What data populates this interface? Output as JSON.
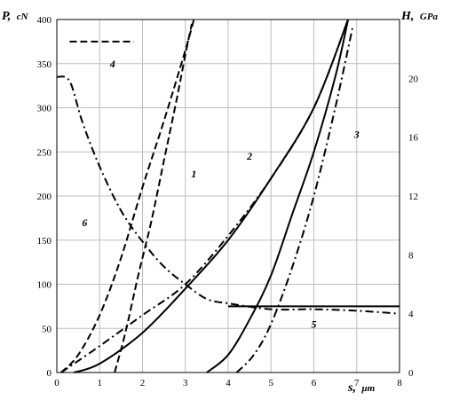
{
  "chart_data": {
    "type": "line",
    "y_left_label": "P,",
    "y_left_unit": "cN",
    "y_right_label": "H,",
    "y_right_unit": "GPa",
    "x_label": "s,",
    "x_unit": "μm",
    "x_ticks": [
      "0",
      "1",
      "2",
      "3",
      "4",
      "5",
      "6",
      "7",
      "8"
    ],
    "y_left_ticks": [
      "0",
      "50",
      "100",
      "150",
      "200",
      "250",
      "300",
      "350",
      "400"
    ],
    "y_right_ticks": [
      "0",
      "4",
      "8",
      "12",
      "16",
      "20"
    ],
    "xlim": [
      0,
      8
    ],
    "ylim_left": [
      0,
      400
    ],
    "ylim_right": [
      0,
      24
    ],
    "grid": true,
    "series": [
      {
        "name": "1",
        "axis": "left",
        "style": "dashed",
        "x": [
          1.35,
          1.6,
          1.9,
          2.2,
          2.5,
          2.8,
          3.0,
          3.15
        ],
        "y": [
          0,
          45,
          110,
          170,
          240,
          310,
          360,
          395
        ]
      },
      {
        "name": "1",
        "axis": "left",
        "style": "dashed",
        "x": [
          0.1,
          0.5,
          1.0,
          1.5,
          2.0,
          2.5,
          3.0,
          3.2
        ],
        "y": [
          0,
          20,
          65,
          130,
          210,
          285,
          365,
          400
        ]
      },
      {
        "name": "2",
        "axis": "left",
        "style": "solid",
        "x": [
          0.4,
          1.0,
          2.0,
          3.0,
          4.0,
          5.0,
          6.0,
          6.8
        ],
        "y": [
          0,
          10,
          45,
          95,
          150,
          220,
          300,
          400
        ]
      },
      {
        "name": "2",
        "axis": "left",
        "style": "dash-dot",
        "x": [
          0.1,
          1.0,
          2.0,
          3.0,
          4.0,
          5.0,
          6.0,
          6.8
        ],
        "y": [
          0,
          30,
          65,
          100,
          155,
          220,
          300,
          400
        ]
      },
      {
        "name": "3",
        "axis": "left",
        "style": "solid",
        "x": [
          3.5,
          4.0,
          4.5,
          5.0,
          5.5,
          6.0,
          6.5,
          6.8
        ],
        "y": [
          0,
          20,
          60,
          110,
          180,
          250,
          335,
          400
        ]
      },
      {
        "name": "3",
        "axis": "left",
        "style": "dash-dot",
        "x": [
          4.2,
          4.6,
          5.0,
          5.5,
          6.0,
          6.5,
          6.9
        ],
        "y": [
          0,
          20,
          55,
          120,
          200,
          300,
          390
        ]
      },
      {
        "name": "4",
        "axis": "left",
        "style": "dashed",
        "x": [
          0.3,
          1.8
        ],
        "y": [
          375,
          375
        ]
      },
      {
        "name": "5",
        "axis": "left",
        "style": "solid",
        "x": [
          4.0,
          8.0
        ],
        "y": [
          75,
          75
        ]
      },
      {
        "name": "6",
        "axis": "right",
        "style": "dash-dot",
        "x": [
          0.0,
          0.3,
          0.6,
          1.0,
          1.5,
          2.0,
          2.5,
          3.0,
          3.5,
          4.0,
          5.0,
          6.0,
          7.0,
          8.0
        ],
        "y": [
          20.1,
          19.8,
          17.0,
          14.0,
          11.0,
          8.9,
          7.2,
          6.0,
          5.0,
          4.7,
          4.3,
          4.3,
          4.2,
          4.0
        ]
      }
    ],
    "labels": [
      {
        "text": "1",
        "x": 3.2,
        "y": 225
      },
      {
        "text": "2",
        "x": 4.5,
        "y": 245
      },
      {
        "text": "3",
        "x": 7.0,
        "y": 270
      },
      {
        "text": "4",
        "x": 1.3,
        "y": 350
      },
      {
        "text": "5",
        "x": 6.0,
        "y": 55
      },
      {
        "text": "6",
        "x": 0.65,
        "y": 170
      }
    ]
  }
}
